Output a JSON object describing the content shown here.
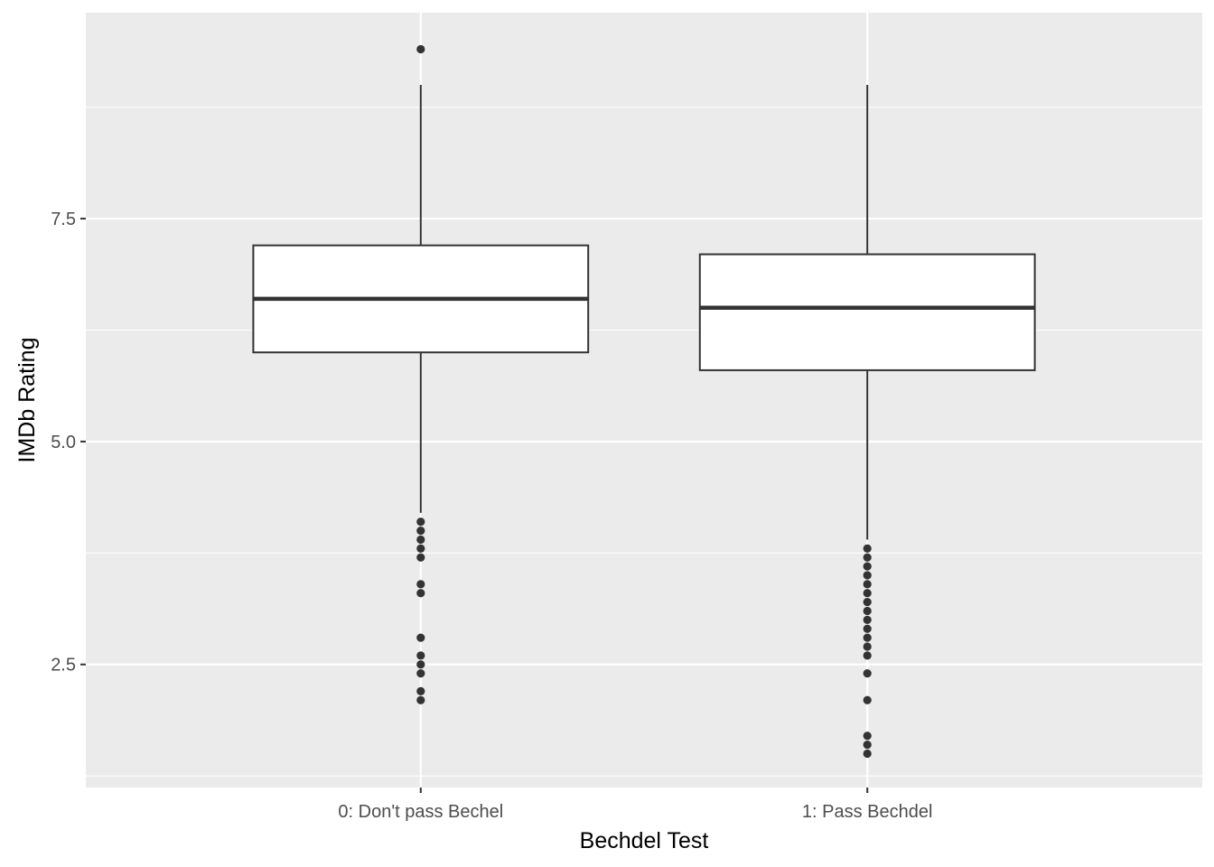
{
  "chart_data": {
    "type": "boxplot",
    "xlabel": "Bechdel Test",
    "ylabel": "IMDb Rating",
    "ylim": [
      1.12,
      9.81
    ],
    "y_ticks": [
      2.5,
      5.0,
      7.5
    ],
    "y_tick_labels": [
      "2.5",
      "5.0",
      "7.5"
    ],
    "grid": true,
    "legend": "none",
    "categories": [
      "0: Don't pass Bechel",
      "1: Pass Bechdel"
    ],
    "boxes": [
      {
        "category": "0: Don't pass Bechel",
        "whisker_low": 4.2,
        "q1": 6.0,
        "median": 6.6,
        "q3": 7.2,
        "whisker_high": 9.0,
        "outliers": [
          9.4,
          4.1,
          4.0,
          3.9,
          3.8,
          3.7,
          3.4,
          3.3,
          2.8,
          2.6,
          2.5,
          2.4,
          2.2,
          2.1
        ]
      },
      {
        "category": "1: Pass Bechdel",
        "whisker_low": 3.9,
        "q1": 5.8,
        "median": 6.5,
        "q3": 7.1,
        "whisker_high": 9.0,
        "outliers": [
          3.8,
          3.7,
          3.6,
          3.5,
          3.4,
          3.3,
          3.2,
          3.1,
          3.0,
          2.9,
          2.8,
          2.7,
          2.6,
          2.4,
          2.1,
          1.7,
          1.6,
          1.5
        ]
      }
    ],
    "colors": {
      "panel_background": "#ebebeb",
      "gridline": "#ffffff",
      "box_fill": "#ffffff",
      "box_line": "#333333",
      "outlier": "#333333",
      "tick_text": "#4d4d4d",
      "axis_title_text": "#000000"
    }
  }
}
